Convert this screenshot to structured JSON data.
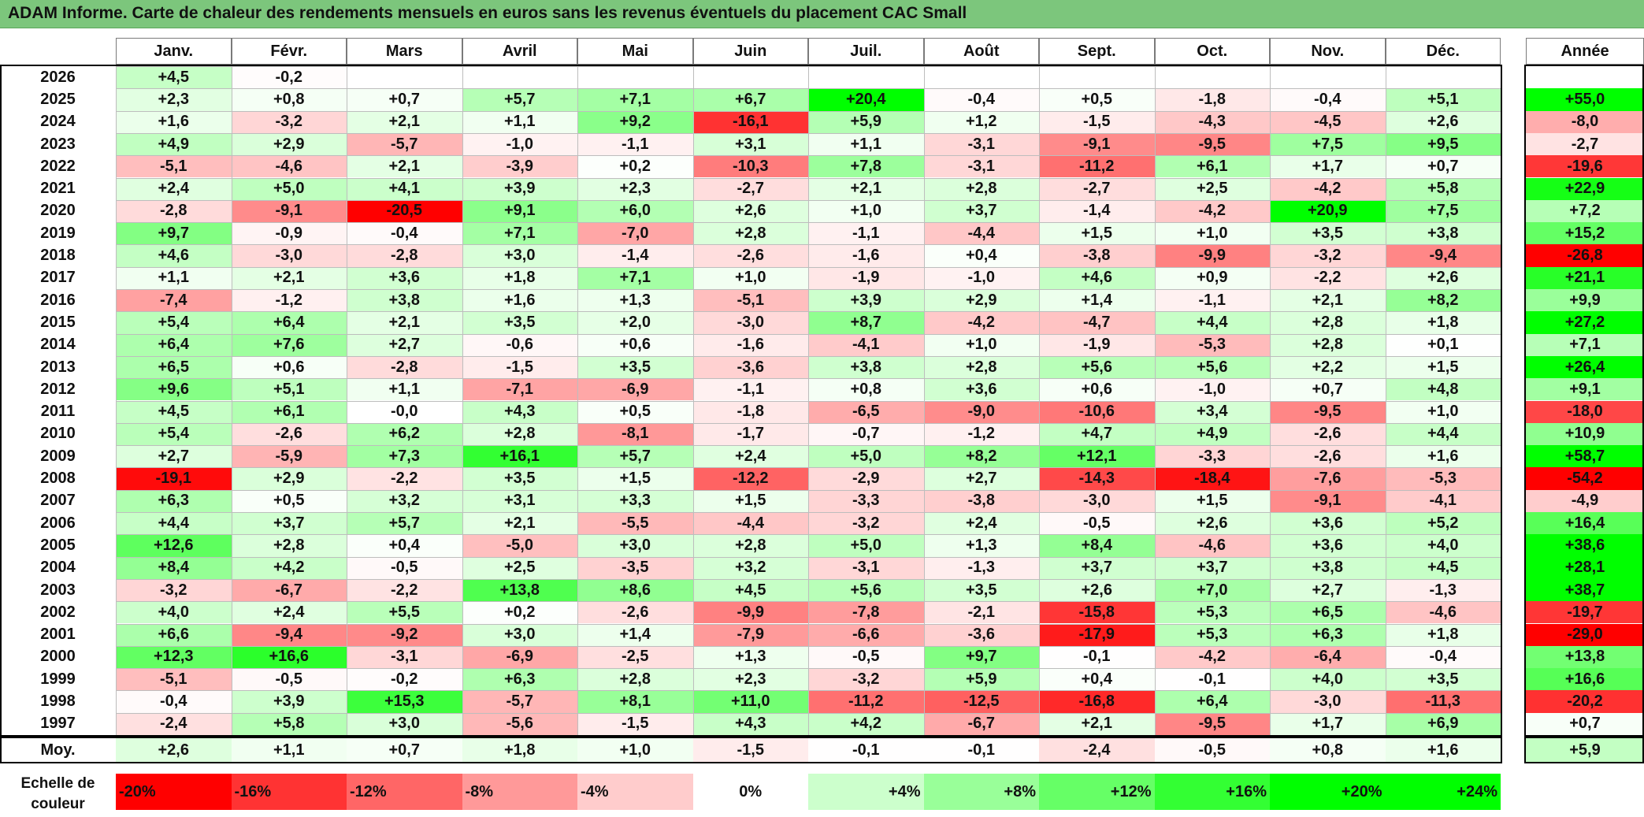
{
  "title": "ADAM Informe. Carte de chaleur des rendements mensuels en euros sans les revenus éventuels du placement CAC Small",
  "chart_data": {
    "type": "heatmap",
    "title": "ADAM Informe. Carte de chaleur des rendements mensuels en euros sans les revenus éventuels du placement CAC Small",
    "columns": [
      "Janv.",
      "Févr.",
      "Mars",
      "Avril",
      "Mai",
      "Juin",
      "Juil.",
      "Août",
      "Sept.",
      "Oct.",
      "Nov.",
      "Déc."
    ],
    "annual_header": "Année",
    "rows": [
      {
        "year": "2026",
        "values": [
          "+4,5",
          "-0,2",
          "",
          "",
          "",
          "",
          "",
          "",
          "",
          "",
          "",
          ""
        ],
        "annual": ""
      },
      {
        "year": "2025",
        "values": [
          "+2,3",
          "+0,8",
          "+0,7",
          "+5,7",
          "+7,1",
          "+6,7",
          "+20,4",
          "-0,4",
          "+0,5",
          "-1,8",
          "-0,4",
          "+5,1"
        ],
        "annual": "+55,0"
      },
      {
        "year": "2024",
        "values": [
          "+1,6",
          "-3,2",
          "+2,1",
          "+1,1",
          "+9,2",
          "-16,1",
          "+5,9",
          "+1,2",
          "-1,5",
          "-4,3",
          "-4,5",
          "+2,6"
        ],
        "annual": "-8,0"
      },
      {
        "year": "2023",
        "values": [
          "+4,9",
          "+2,9",
          "-5,7",
          "-1,0",
          "-1,1",
          "+3,1",
          "+1,1",
          "-3,1",
          "-9,1",
          "-9,5",
          "+7,5",
          "+9,5"
        ],
        "annual": "-2,7"
      },
      {
        "year": "2022",
        "values": [
          "-5,1",
          "-4,6",
          "+2,1",
          "-3,9",
          "+0,2",
          "-10,3",
          "+7,8",
          "-3,1",
          "-11,2",
          "+6,1",
          "+1,7",
          "+0,7"
        ],
        "annual": "-19,6"
      },
      {
        "year": "2021",
        "values": [
          "+2,4",
          "+5,0",
          "+4,1",
          "+3,9",
          "+2,3",
          "-2,7",
          "+2,1",
          "+2,8",
          "-2,7",
          "+2,5",
          "-4,2",
          "+5,8"
        ],
        "annual": "+22,9"
      },
      {
        "year": "2020",
        "values": [
          "-2,8",
          "-9,1",
          "-20,5",
          "+9,1",
          "+6,0",
          "+2,6",
          "+1,0",
          "+3,7",
          "-1,4",
          "-4,2",
          "+20,9",
          "+7,5"
        ],
        "annual": "+7,2"
      },
      {
        "year": "2019",
        "values": [
          "+9,7",
          "-0,9",
          "-0,4",
          "+7,1",
          "-7,0",
          "+2,8",
          "-1,1",
          "-4,4",
          "+1,5",
          "+1,0",
          "+3,5",
          "+3,8"
        ],
        "annual": "+15,2"
      },
      {
        "year": "2018",
        "values": [
          "+4,6",
          "-3,0",
          "-2,8",
          "+3,0",
          "-1,4",
          "-2,6",
          "-1,6",
          "+0,4",
          "-3,8",
          "-9,9",
          "-3,2",
          "-9,4"
        ],
        "annual": "-26,8"
      },
      {
        "year": "2017",
        "values": [
          "+1,1",
          "+2,1",
          "+3,6",
          "+1,8",
          "+7,1",
          "+1,0",
          "-1,9",
          "-1,0",
          "+4,6",
          "+0,9",
          "-2,2",
          "+2,6"
        ],
        "annual": "+21,1"
      },
      {
        "year": "2016",
        "values": [
          "-7,4",
          "-1,2",
          "+3,8",
          "+1,6",
          "+1,3",
          "-5,1",
          "+3,9",
          "+2,9",
          "+1,4",
          "-1,1",
          "+2,1",
          "+8,2"
        ],
        "annual": "+9,9"
      },
      {
        "year": "2015",
        "values": [
          "+5,4",
          "+6,4",
          "+2,1",
          "+3,5",
          "+2,0",
          "-3,0",
          "+8,7",
          "-4,2",
          "-4,7",
          "+4,4",
          "+2,8",
          "+1,8"
        ],
        "annual": "+27,2"
      },
      {
        "year": "2014",
        "values": [
          "+6,4",
          "+7,6",
          "+2,7",
          "-0,6",
          "+0,6",
          "-1,6",
          "-4,1",
          "+1,0",
          "-1,9",
          "-5,3",
          "+2,8",
          "+0,1"
        ],
        "annual": "+7,1"
      },
      {
        "year": "2013",
        "values": [
          "+6,5",
          "+0,6",
          "-2,8",
          "-1,5",
          "+3,5",
          "-3,6",
          "+3,8",
          "+2,8",
          "+5,6",
          "+5,6",
          "+2,2",
          "+1,5"
        ],
        "annual": "+26,4"
      },
      {
        "year": "2012",
        "values": [
          "+9,6",
          "+5,1",
          "+1,1",
          "-7,1",
          "-6,9",
          "-1,1",
          "+0,8",
          "+3,6",
          "+0,6",
          "-1,0",
          "+0,7",
          "+4,8"
        ],
        "annual": "+9,1"
      },
      {
        "year": "2011",
        "values": [
          "+4,5",
          "+6,1",
          "-0,0",
          "+4,3",
          "+0,5",
          "-1,8",
          "-6,5",
          "-9,0",
          "-10,6",
          "+3,4",
          "-9,5",
          "+1,0"
        ],
        "annual": "-18,0"
      },
      {
        "year": "2010",
        "values": [
          "+5,4",
          "-2,6",
          "+6,2",
          "+2,8",
          "-8,1",
          "-1,7",
          "-0,7",
          "-1,2",
          "+4,7",
          "+4,9",
          "-2,6",
          "+4,4"
        ],
        "annual": "+10,9"
      },
      {
        "year": "2009",
        "values": [
          "+2,7",
          "-5,9",
          "+7,3",
          "+16,1",
          "+5,7",
          "+2,4",
          "+5,0",
          "+8,2",
          "+12,1",
          "-3,3",
          "-2,6",
          "+1,6"
        ],
        "annual": "+58,7"
      },
      {
        "year": "2008",
        "values": [
          "-19,1",
          "+2,9",
          "-2,2",
          "+3,5",
          "+1,5",
          "-12,2",
          "-2,9",
          "+2,7",
          "-14,3",
          "-18,4",
          "-7,6",
          "-5,3"
        ],
        "annual": "-54,2"
      },
      {
        "year": "2007",
        "values": [
          "+6,3",
          "+0,5",
          "+3,2",
          "+3,1",
          "+3,3",
          "+1,5",
          "-3,3",
          "-3,8",
          "-3,0",
          "+1,5",
          "-9,1",
          "-4,1"
        ],
        "annual": "-4,9"
      },
      {
        "year": "2006",
        "values": [
          "+4,4",
          "+3,7",
          "+5,7",
          "+2,1",
          "-5,5",
          "-4,4",
          "-3,2",
          "+2,4",
          "-0,5",
          "+2,6",
          "+3,6",
          "+5,2"
        ],
        "annual": "+16,4"
      },
      {
        "year": "2005",
        "values": [
          "+12,6",
          "+2,8",
          "+0,4",
          "-5,0",
          "+3,0",
          "+2,8",
          "+5,0",
          "+1,3",
          "+8,4",
          "-4,6",
          "+3,6",
          "+4,0"
        ],
        "annual": "+38,6"
      },
      {
        "year": "2004",
        "values": [
          "+8,4",
          "+4,2",
          "-0,5",
          "+2,5",
          "-3,5",
          "+3,2",
          "-3,1",
          "-1,3",
          "+3,7",
          "+3,7",
          "+3,8",
          "+4,5"
        ],
        "annual": "+28,1"
      },
      {
        "year": "2003",
        "values": [
          "-3,2",
          "-6,7",
          "-2,2",
          "+13,8",
          "+8,6",
          "+4,5",
          "+5,6",
          "+3,5",
          "+2,6",
          "+7,0",
          "+2,7",
          "-1,3"
        ],
        "annual": "+38,7"
      },
      {
        "year": "2002",
        "values": [
          "+4,0",
          "+2,4",
          "+5,5",
          "+0,2",
          "-2,6",
          "-9,9",
          "-7,8",
          "-2,1",
          "-15,8",
          "+5,3",
          "+6,5",
          "-4,6"
        ],
        "annual": "-19,7"
      },
      {
        "year": "2001",
        "values": [
          "+6,6",
          "-9,4",
          "-9,2",
          "+3,0",
          "+1,4",
          "-7,9",
          "-6,6",
          "-3,6",
          "-17,9",
          "+5,3",
          "+6,3",
          "+1,8"
        ],
        "annual": "-29,0"
      },
      {
        "year": "2000",
        "values": [
          "+12,3",
          "+16,6",
          "-3,1",
          "-6,9",
          "-2,5",
          "+1,3",
          "-0,5",
          "+9,7",
          "-0,1",
          "-4,2",
          "-6,4",
          "-0,4"
        ],
        "annual": "+13,8"
      },
      {
        "year": "1999",
        "values": [
          "-5,1",
          "-0,5",
          "-0,2",
          "+6,3",
          "+2,8",
          "+2,3",
          "-3,2",
          "+5,9",
          "+0,4",
          "-0,1",
          "+4,0",
          "+3,5"
        ],
        "annual": "+16,6"
      },
      {
        "year": "1998",
        "values": [
          "-0,4",
          "+3,9",
          "+15,3",
          "-5,7",
          "+8,1",
          "+11,0",
          "-11,2",
          "-12,5",
          "-16,8",
          "+6,4",
          "-3,0",
          "-11,3"
        ],
        "annual": "-20,2"
      },
      {
        "year": "1997",
        "values": [
          "-2,4",
          "+5,8",
          "+3,0",
          "-5,6",
          "-1,5",
          "+4,3",
          "+4,2",
          "-6,7",
          "+2,1",
          "-9,5",
          "+1,7",
          "+6,9"
        ],
        "annual": "+0,7"
      }
    ],
    "average": {
      "label": "Moy.",
      "values": [
        "+2,6",
        "+1,1",
        "+0,7",
        "+1,8",
        "+1,0",
        "-1,5",
        "-0,1",
        "-0,1",
        "-2,4",
        "-0,5",
        "+0,8",
        "+1,6"
      ],
      "annual": "+5,9"
    },
    "scale": {
      "label": "Echelle de couleur",
      "steps": [
        {
          "label": "-20%",
          "value": -20
        },
        {
          "label": "-16%",
          "value": -16
        },
        {
          "label": "-12%",
          "value": -12
        },
        {
          "label": "-8%",
          "value": -8
        },
        {
          "label": "-4%",
          "value": -4
        },
        {
          "label": "0%",
          "value": 0
        },
        {
          "label": "+4%",
          "value": 4
        },
        {
          "label": "+8%",
          "value": 8
        },
        {
          "label": "+12%",
          "value": 12
        },
        {
          "label": "+16%",
          "value": 16
        },
        {
          "label": "+20%",
          "value": 20
        },
        {
          "label": "+24%",
          "value": 24
        }
      ]
    },
    "colors": {
      "negative": "#ff0000",
      "neutral": "#ffffff",
      "positive": "#00ff00",
      "header": "#7cc67c"
    }
  }
}
